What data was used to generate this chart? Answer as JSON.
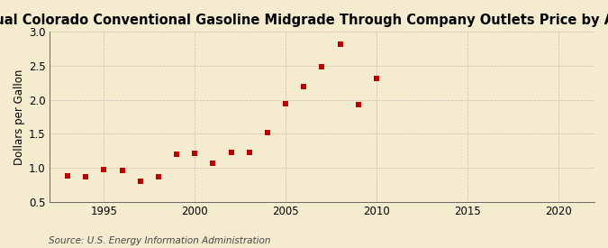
{
  "title": "Annual Colorado Conventional Gasoline Midgrade Through Company Outlets Price by All Sellers",
  "ylabel": "Dollars per Gallon",
  "source": "Source: U.S. Energy Information Administration",
  "background_color": "#f5ecd0",
  "plot_bg_color": "#f5ecd0",
  "marker_color": "#bb0000",
  "years": [
    1993,
    1994,
    1995,
    1996,
    1997,
    1998,
    1999,
    2000,
    2001,
    2002,
    2003,
    2004,
    2005,
    2006,
    2007,
    2008,
    2009,
    2010
  ],
  "values": [
    0.88,
    0.87,
    0.97,
    0.96,
    0.8,
    0.87,
    1.2,
    1.21,
    1.06,
    1.22,
    1.22,
    1.52,
    1.94,
    2.2,
    2.48,
    2.82,
    1.93,
    2.31
  ],
  "xlim": [
    1992,
    2022
  ],
  "ylim": [
    0.5,
    3.0
  ],
  "xticks": [
    1995,
    2000,
    2005,
    2010,
    2015,
    2020
  ],
  "yticks": [
    0.5,
    1.0,
    1.5,
    2.0,
    2.5,
    3.0
  ],
  "title_fontsize": 10.5,
  "label_fontsize": 8.5,
  "source_fontsize": 7.5,
  "tick_fontsize": 8.5,
  "grid_color": "#aaaaaa",
  "spine_color": "#555555"
}
